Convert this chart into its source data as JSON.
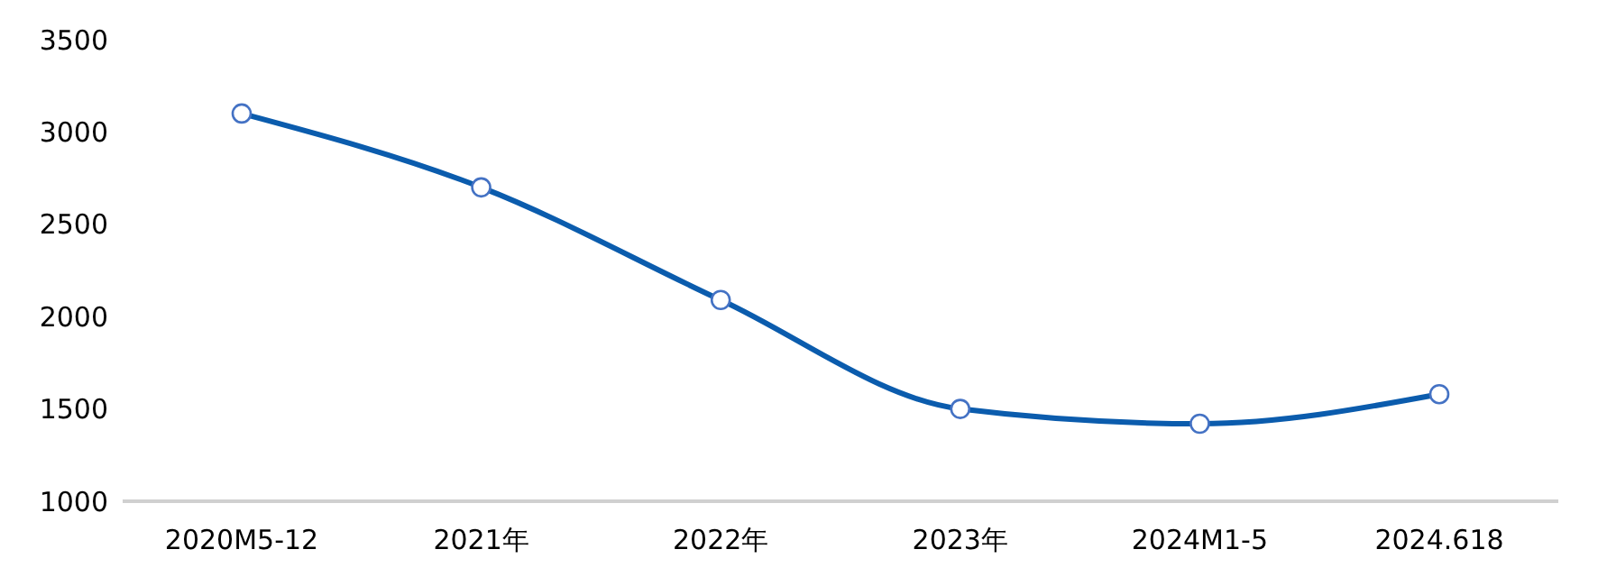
{
  "chart_data": {
    "type": "line",
    "categories": [
      "2020M5-12",
      "2021年",
      "2022年",
      "2023年",
      "2024M1-5",
      "2024.618"
    ],
    "series": [
      {
        "color": "#0b5cad",
        "values": [
          3100,
          2700,
          2090,
          1500,
          1420,
          1580
        ]
      }
    ],
    "ylim": [
      1000,
      3500
    ],
    "yticks": [
      1000,
      1500,
      2000,
      2500,
      3000,
      3500
    ],
    "grid": false,
    "legend": false,
    "marker": "circle",
    "line_style": "solid"
  }
}
